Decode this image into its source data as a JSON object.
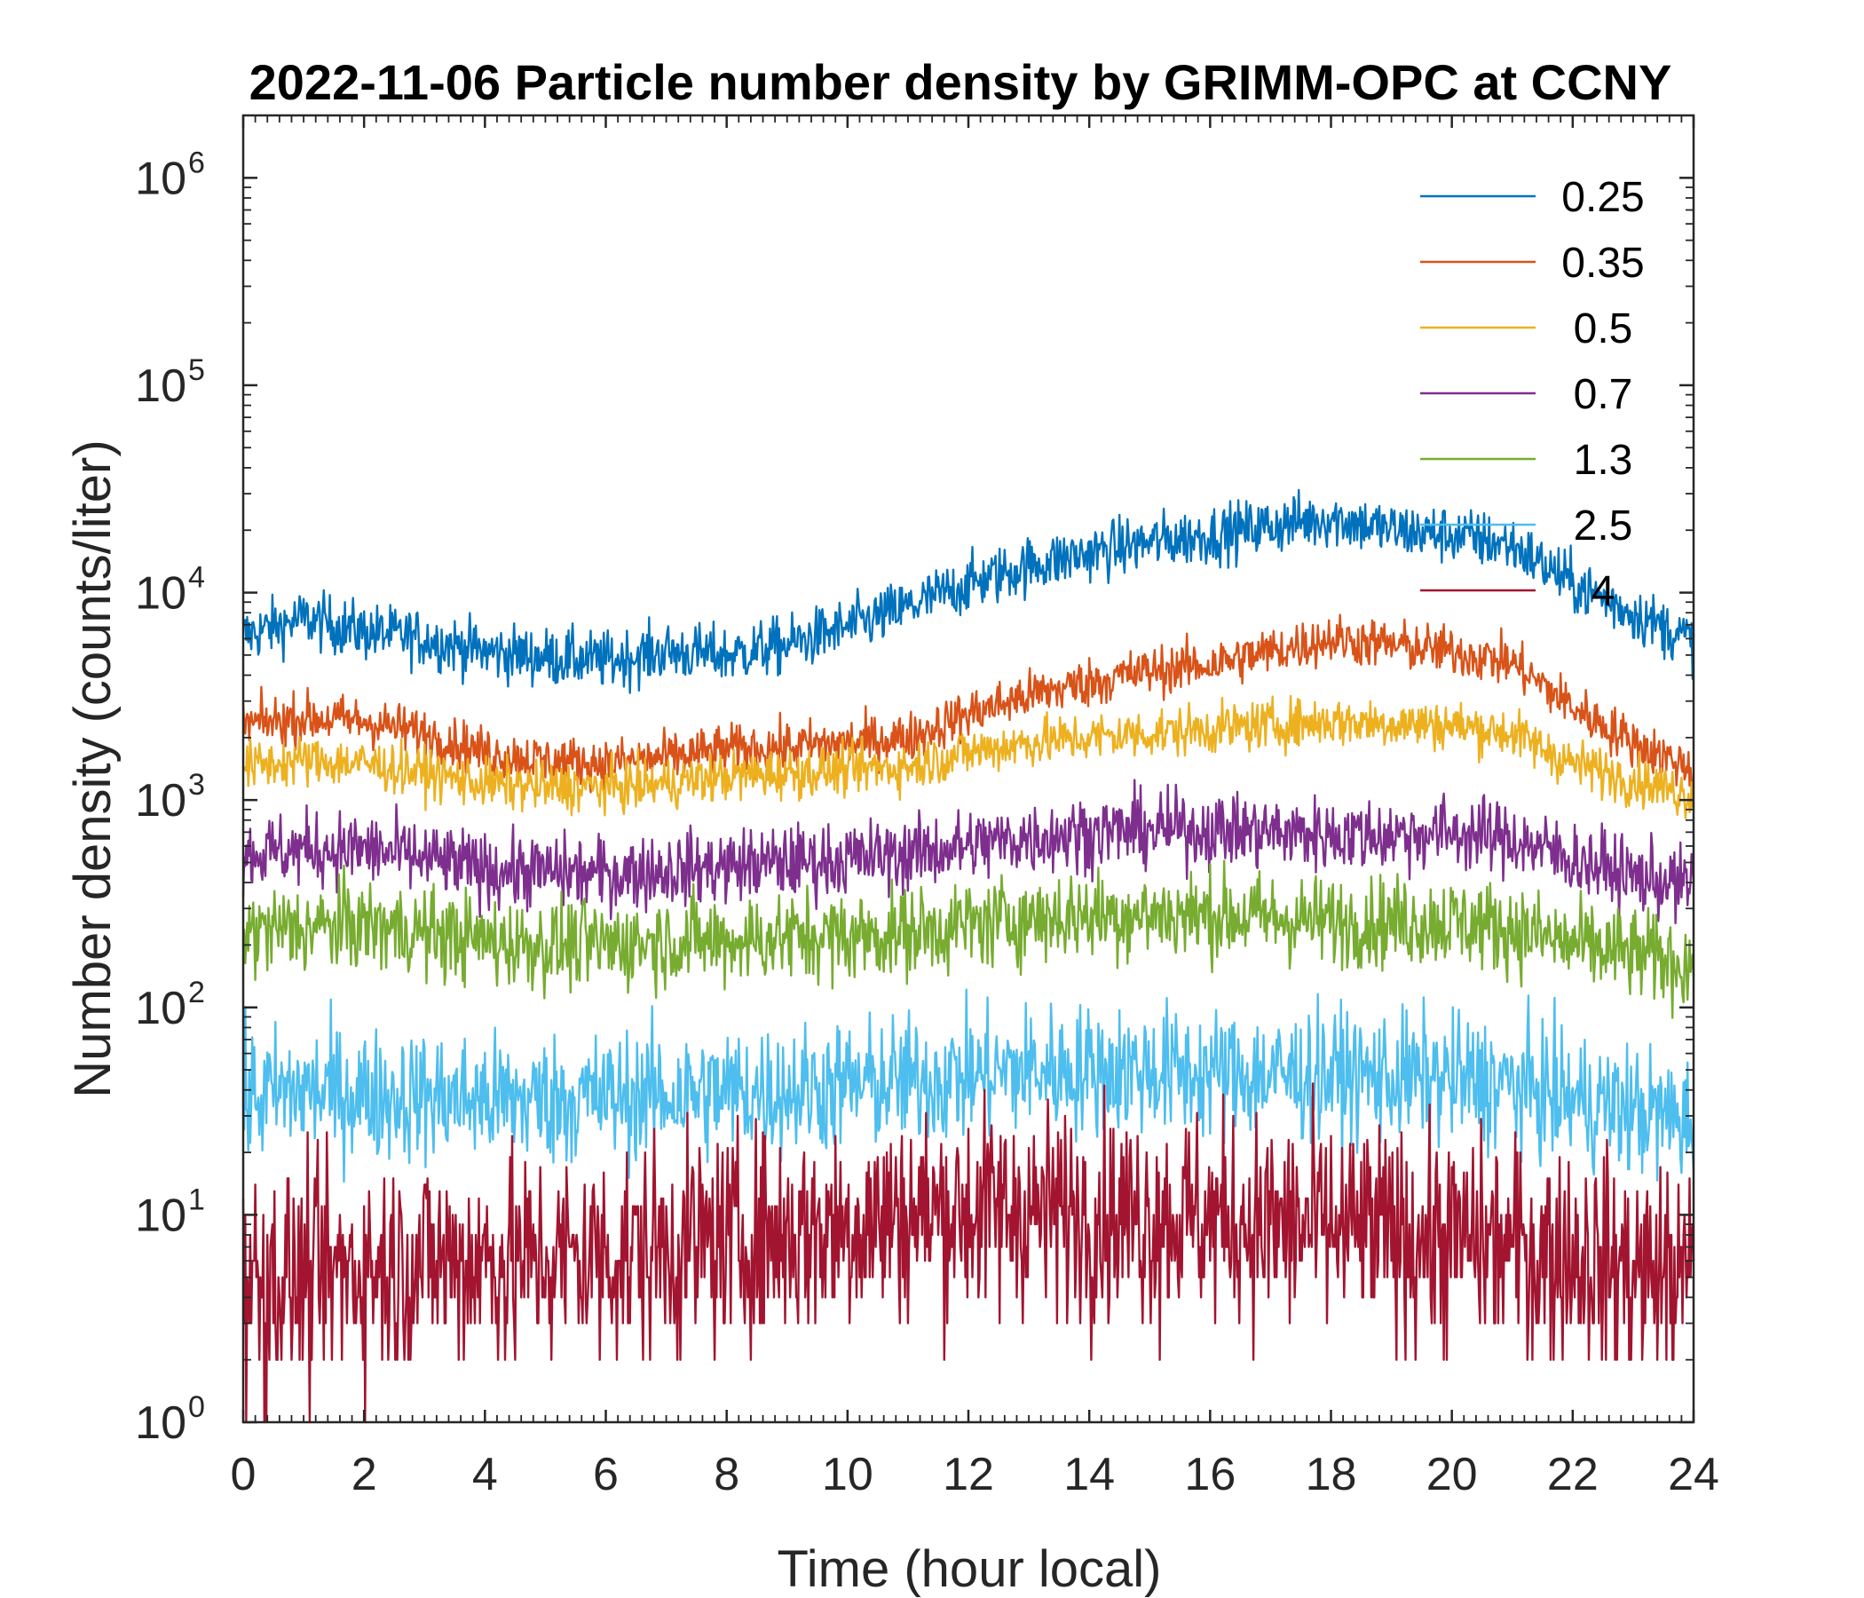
{
  "chart_data": {
    "type": "line",
    "title": "2022-11-06 Particle number density by GRIMM-OPC at CCNY",
    "xlabel": "Time (hour local)",
    "ylabel": "Number density (counts/liter)",
    "xlim": [
      0,
      24
    ],
    "ylim": [
      1,
      2000000
    ],
    "yscale": "log",
    "x_ticks": [
      0,
      2,
      4,
      6,
      8,
      10,
      12,
      14,
      16,
      18,
      20,
      22,
      24
    ],
    "x_tick_labels": [
      "0",
      "2",
      "4",
      "6",
      "8",
      "10",
      "12",
      "14",
      "16",
      "18",
      "20",
      "22",
      "24"
    ],
    "y_ticks": [
      {
        "value": 1,
        "base": "10",
        "exp": "0"
      },
      {
        "value": 10,
        "base": "10",
        "exp": "1"
      },
      {
        "value": 100,
        "base": "10",
        "exp": "2"
      },
      {
        "value": 1000,
        "base": "10",
        "exp": "3"
      },
      {
        "value": 10000,
        "base": "10",
        "exp": "4"
      },
      {
        "value": 100000,
        "base": "10",
        "exp": "5"
      },
      {
        "value": 1000000,
        "base": "10",
        "exp": "6"
      }
    ],
    "legend_position": "top-right",
    "x": [
      0,
      1,
      2,
      3,
      4,
      5,
      6,
      7,
      8,
      9,
      10,
      11,
      12,
      13,
      14,
      15,
      16,
      17,
      18,
      19,
      20,
      21,
      22,
      23,
      24
    ],
    "series": [
      {
        "name": "0.25",
        "legend_label": "0.25",
        "color": "#0072BD",
        "noise": 0.07,
        "values": [
          6200,
          7500,
          6500,
          6000,
          5200,
          4900,
          4700,
          5200,
          5000,
          5600,
          6800,
          8500,
          11000,
          13500,
          15500,
          17500,
          19000,
          21000,
          23000,
          20000,
          19000,
          17000,
          11000,
          8000,
          5800
        ]
      },
      {
        "name": "0.35",
        "legend_label": "0.35",
        "color": "#D95319",
        "noise": 0.06,
        "values": [
          2300,
          2500,
          2400,
          2100,
          1700,
          1550,
          1500,
          1600,
          1750,
          1800,
          1900,
          2000,
          2600,
          3200,
          3700,
          4200,
          4500,
          5200,
          6000,
          5600,
          5200,
          4600,
          2800,
          1900,
          1400
        ]
      },
      {
        "name": "0.5",
        "legend_label": "0.5",
        "color": "#EDB120",
        "noise": 0.06,
        "values": [
          1450,
          1550,
          1500,
          1350,
          1200,
          1150,
          1150,
          1200,
          1300,
          1350,
          1400,
          1450,
          1700,
          1900,
          2000,
          2100,
          2200,
          2300,
          2400,
          2350,
          2300,
          2100,
          1500,
          1250,
          1050
        ]
      },
      {
        "name": "0.7",
        "legend_label": "0.7",
        "color": "#7E2F8E",
        "noise": 0.09,
        "values": [
          550,
          580,
          580,
          520,
          460,
          450,
          440,
          460,
          480,
          500,
          520,
          550,
          600,
          660,
          700,
          720,
          720,
          700,
          680,
          680,
          700,
          650,
          520,
          430,
          380
        ]
      },
      {
        "name": "1.3",
        "legend_label": "1.3",
        "color": "#77AC30",
        "noise": 0.11,
        "values": [
          230,
          240,
          250,
          230,
          210,
          200,
          200,
          210,
          210,
          220,
          220,
          230,
          250,
          270,
          280,
          280,
          280,
          270,
          260,
          260,
          260,
          240,
          200,
          180,
          160
        ]
      },
      {
        "name": "2.5",
        "legend_label": "2.5",
        "color": "#4DBEEE",
        "noise": 0.16,
        "values": [
          36,
          40,
          38,
          37,
          36,
          36,
          37,
          38,
          39,
          40,
          42,
          44,
          47,
          50,
          50,
          50,
          48,
          47,
          47,
          46,
          45,
          42,
          36,
          32,
          28
        ]
      },
      {
        "name": "4",
        "legend_label": "4",
        "color": "#A2142F",
        "noise": 0.26,
        "values": [
          5,
          5,
          5.5,
          6,
          6,
          6,
          6.5,
          7,
          7.5,
          8,
          9,
          10,
          10.5,
          10.5,
          10,
          10,
          9.5,
          9,
          8.5,
          8,
          7.5,
          7,
          6.5,
          5.5,
          5
        ]
      }
    ]
  }
}
